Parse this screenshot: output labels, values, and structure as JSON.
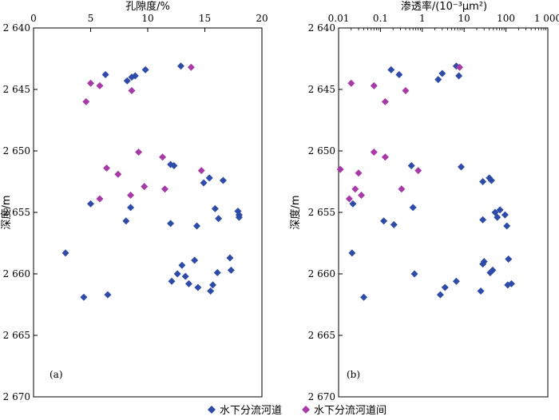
{
  "chart_data": [
    {
      "type": "scatter",
      "panel_label": "(a)",
      "xlabel": "孔隙度/%",
      "ylabel": "深度/m",
      "x_axis_position": "top",
      "xlim": [
        0,
        20
      ],
      "x_ticks": [
        0,
        5,
        10,
        15,
        20
      ],
      "x_tick_labels": [
        "0",
        "5",
        "10",
        "15",
        "20"
      ],
      "ylim": [
        2640,
        2670
      ],
      "y_inverted": true,
      "y_ticks": [
        2640,
        2645,
        2650,
        2655,
        2660,
        2665,
        2670
      ],
      "y_tick_labels": [
        "2 640",
        "2 645",
        "2 650",
        "2 655",
        "2 660",
        "2 665",
        "2 670"
      ],
      "grid": false,
      "series": [
        {
          "name": "水下分流河道",
          "color": "#2E4BA8",
          "marker": "diamond",
          "points": [
            [
              12.9,
              2643.1
            ],
            [
              6.3,
              2643.8
            ],
            [
              9.8,
              2643.4
            ],
            [
              8.9,
              2643.9
            ],
            [
              8.6,
              2644.0
            ],
            [
              8.2,
              2644.3
            ],
            [
              12.0,
              2651.1
            ],
            [
              12.3,
              2651.2
            ],
            [
              15.4,
              2652.2
            ],
            [
              16.6,
              2652.4
            ],
            [
              14.9,
              2652.6
            ],
            [
              5.0,
              2654.3
            ],
            [
              8.5,
              2654.6
            ],
            [
              15.9,
              2654.7
            ],
            [
              17.9,
              2654.9
            ],
            [
              18.0,
              2655.2
            ],
            [
              18.0,
              2655.4
            ],
            [
              16.2,
              2655.5
            ],
            [
              8.1,
              2655.7
            ],
            [
              12.0,
              2655.9
            ],
            [
              14.3,
              2656.1
            ],
            [
              2.8,
              2658.3
            ],
            [
              17.2,
              2658.7
            ],
            [
              14.1,
              2658.9
            ],
            [
              13.0,
              2659.3
            ],
            [
              17.3,
              2659.7
            ],
            [
              16.1,
              2659.9
            ],
            [
              12.6,
              2660.0
            ],
            [
              13.3,
              2660.2
            ],
            [
              12.1,
              2660.6
            ],
            [
              13.6,
              2660.8
            ],
            [
              15.7,
              2660.9
            ],
            [
              14.4,
              2661.1
            ],
            [
              15.5,
              2661.4
            ],
            [
              6.5,
              2661.7
            ],
            [
              4.4,
              2661.9
            ]
          ]
        },
        {
          "name": "水下分流河道间",
          "color": "#A83AA8",
          "marker": "diamond",
          "points": [
            [
              13.8,
              2643.2
            ],
            [
              5.0,
              2644.5
            ],
            [
              5.8,
              2644.7
            ],
            [
              8.6,
              2645.1
            ],
            [
              4.6,
              2646.0
            ],
            [
              9.2,
              2650.1
            ],
            [
              11.3,
              2650.5
            ],
            [
              14.7,
              2651.6
            ],
            [
              6.4,
              2651.4
            ],
            [
              7.4,
              2651.9
            ],
            [
              9.7,
              2652.9
            ],
            [
              11.5,
              2653.1
            ],
            [
              8.5,
              2653.6
            ],
            [
              5.8,
              2653.9
            ]
          ]
        }
      ]
    },
    {
      "type": "scatter",
      "panel_label": "(b)",
      "xlabel": "渗透率/(10⁻³μm²)",
      "ylabel": "深度/m",
      "x_axis_position": "top",
      "x_scale": "log",
      "xlim": [
        0.01,
        1000
      ],
      "x_ticks": [
        0.01,
        0.1,
        1,
        10,
        100,
        1000
      ],
      "x_tick_labels": [
        "0.01",
        "0.1",
        "1",
        "10",
        "100",
        "1 000"
      ],
      "ylim": [
        2640,
        2670
      ],
      "y_inverted": true,
      "y_ticks": [
        2640,
        2645,
        2650,
        2655,
        2660,
        2665,
        2670
      ],
      "y_tick_labels": [
        "2 640",
        "2 645",
        "2 650",
        "2 655",
        "2 660",
        "2 665",
        "2 670"
      ],
      "grid": false,
      "series": [
        {
          "name": "水下分流河道",
          "color": "#2E4BA8",
          "marker": "diamond",
          "points": [
            [
              6.5,
              2643.1
            ],
            [
              0.18,
              2643.4
            ],
            [
              3.0,
              2643.7
            ],
            [
              0.28,
              2643.8
            ],
            [
              7.5,
              2643.9
            ],
            [
              2.4,
              2644.2
            ],
            [
              0.55,
              2651.2
            ],
            [
              8.5,
              2651.3
            ],
            [
              40,
              2652.2
            ],
            [
              28,
              2652.5
            ],
            [
              45,
              2652.4
            ],
            [
              0.022,
              2654.3
            ],
            [
              0.6,
              2654.6
            ],
            [
              72,
              2654.8
            ],
            [
              55,
              2655.0
            ],
            [
              95,
              2655.2
            ],
            [
              62,
              2655.4
            ],
            [
              28,
              2655.6
            ],
            [
              0.12,
              2655.7
            ],
            [
              0.21,
              2656.0
            ],
            [
              105,
              2656.1
            ],
            [
              0.021,
              2658.3
            ],
            [
              115,
              2658.8
            ],
            [
              30,
              2659.0
            ],
            [
              28,
              2659.2
            ],
            [
              48,
              2659.7
            ],
            [
              42,
              2659.9
            ],
            [
              0.65,
              2660.0
            ],
            [
              6.5,
              2660.6
            ],
            [
              135,
              2660.8
            ],
            [
              110,
              2660.9
            ],
            [
              3.5,
              2661.1
            ],
            [
              2.7,
              2661.7
            ],
            [
              0.04,
              2661.9
            ],
            [
              25,
              2661.4
            ]
          ]
        },
        {
          "name": "水下分流河道间",
          "color": "#A83AA8",
          "marker": "diamond",
          "points": [
            [
              7.8,
              2643.2
            ],
            [
              0.02,
              2644.5
            ],
            [
              0.07,
              2644.7
            ],
            [
              0.4,
              2645.1
            ],
            [
              0.13,
              2646.0
            ],
            [
              0.07,
              2650.1
            ],
            [
              0.13,
              2650.5
            ],
            [
              0.011,
              2651.5
            ],
            [
              0.8,
              2651.6
            ],
            [
              0.03,
              2651.8
            ],
            [
              0.32,
              2653.1
            ],
            [
              0.025,
              2653.1
            ],
            [
              0.035,
              2653.6
            ],
            [
              0.018,
              2653.9
            ]
          ]
        }
      ]
    }
  ],
  "legend": {
    "placement": "bottom-center",
    "items": [
      {
        "label": "水下分流河道",
        "color": "#2E4BA8"
      },
      {
        "label": "水下分流河道间",
        "color": "#A83AA8"
      }
    ]
  }
}
